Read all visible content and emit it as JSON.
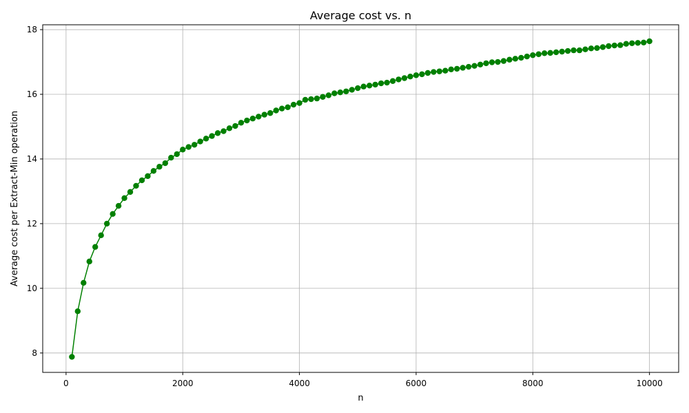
{
  "colors": {
    "series": "#008000",
    "grid": "#b0b0b0",
    "axis": "#000000",
    "background": "#ffffff"
  },
  "chart_data": {
    "type": "line",
    "title": "Average cost vs. n",
    "xlabel": "n",
    "ylabel": "Average cost per Extract-Min operation",
    "xlim": [
      -400,
      10500
    ],
    "ylim": [
      7.4,
      18.15
    ],
    "xticks": [
      0,
      2000,
      4000,
      6000,
      8000,
      10000
    ],
    "xtick_labels": [
      "0",
      "2000",
      "4000",
      "6000",
      "8000",
      "10000"
    ],
    "yticks": [
      8,
      10,
      12,
      14,
      16,
      18
    ],
    "ytick_labels": [
      "8",
      "10",
      "12",
      "14",
      "16",
      "18"
    ],
    "grid": true,
    "legend": "none",
    "marker": "circle",
    "series": [
      {
        "x": [
          100,
          200,
          300,
          400,
          500,
          600,
          700,
          800,
          900,
          1000,
          1100,
          1200,
          1300,
          1400,
          1500,
          1600,
          1700,
          1800,
          1900,
          2000,
          2100,
          2200,
          2300,
          2400,
          2500,
          2600,
          2700,
          2800,
          2900,
          3000,
          3100,
          3200,
          3300,
          3400,
          3500,
          3600,
          3700,
          3800,
          3900,
          4000,
          4100,
          4200,
          4300,
          4400,
          4500,
          4600,
          4700,
          4800,
          4900,
          5000,
          5100,
          5200,
          5300,
          5400,
          5500,
          5600,
          5700,
          5800,
          5900,
          6000,
          6100,
          6200,
          6300,
          6400,
          6500,
          6600,
          6700,
          6800,
          6900,
          7000,
          7100,
          7200,
          7300,
          7400,
          7500,
          7600,
          7700,
          7800,
          7900,
          8000,
          8100,
          8200,
          8300,
          8400,
          8500,
          8600,
          8700,
          8800,
          8900,
          9000,
          9100,
          9200,
          9300,
          9400,
          9500,
          9600,
          9700,
          9800,
          9900,
          10000
        ],
        "values": [
          7.88,
          9.29,
          10.17,
          10.83,
          11.28,
          11.64,
          12.0,
          12.3,
          12.55,
          12.79,
          12.98,
          13.17,
          13.34,
          13.47,
          13.63,
          13.76,
          13.87,
          14.04,
          14.15,
          14.29,
          14.37,
          14.44,
          14.54,
          14.63,
          14.71,
          14.8,
          14.86,
          14.95,
          15.02,
          15.12,
          15.19,
          15.25,
          15.31,
          15.37,
          15.42,
          15.5,
          15.56,
          15.6,
          15.68,
          15.73,
          15.83,
          15.85,
          15.87,
          15.92,
          15.97,
          16.03,
          16.06,
          16.09,
          16.14,
          16.19,
          16.24,
          16.27,
          16.3,
          16.34,
          16.36,
          16.41,
          16.46,
          16.5,
          16.55,
          16.59,
          16.62,
          16.66,
          16.69,
          16.71,
          16.73,
          16.77,
          16.79,
          16.82,
          16.85,
          16.88,
          16.92,
          16.96,
          16.99,
          17.0,
          17.03,
          17.07,
          17.1,
          17.13,
          17.17,
          17.21,
          17.24,
          17.27,
          17.28,
          17.3,
          17.32,
          17.34,
          17.36,
          17.36,
          17.39,
          17.42,
          17.43,
          17.46,
          17.49,
          17.51,
          17.52,
          17.56,
          17.58,
          17.59,
          17.6,
          17.64
        ]
      }
    ]
  }
}
